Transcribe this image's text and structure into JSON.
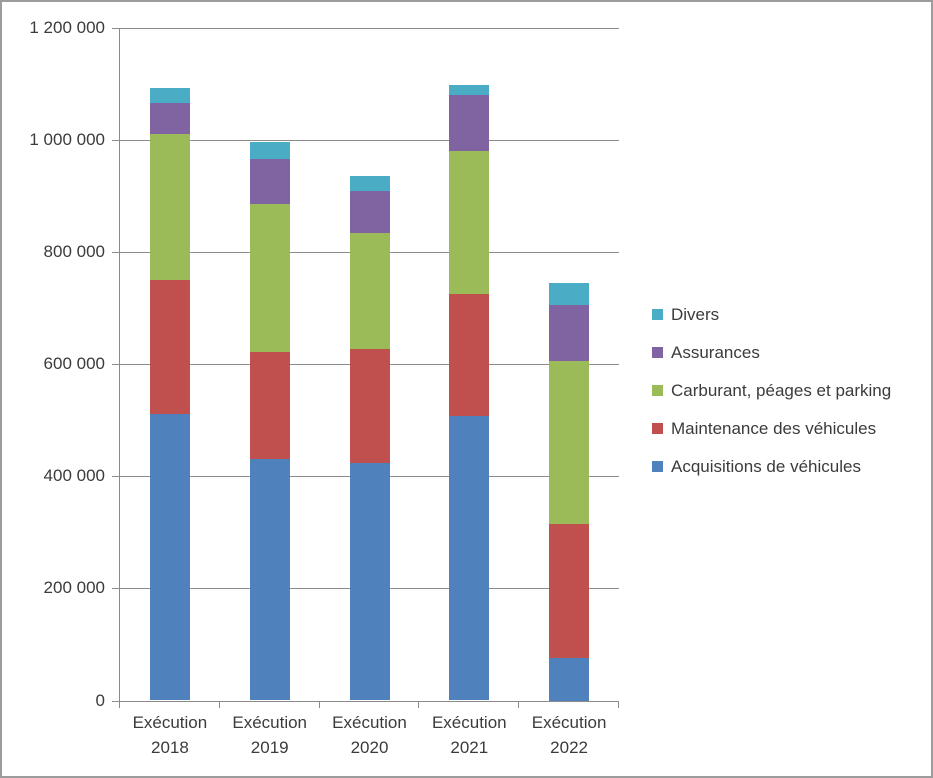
{
  "colors": {
    "background": "#FFFFFF",
    "frame_border": "#9C9C9C",
    "gridline": "#8A8A8A",
    "axis": "#8A8A8A",
    "text": "#3B3B3B"
  },
  "chart_data": {
    "type": "bar",
    "stacked": true,
    "title": "",
    "xlabel": "",
    "ylabel": "",
    "grid": true,
    "categories": [
      {
        "line1": "Exécution",
        "line2": "2018"
      },
      {
        "line1": "Exécution",
        "line2": "2019"
      },
      {
        "line1": "Exécution",
        "line2": "2020"
      },
      {
        "line1": "Exécution",
        "line2": "2021"
      },
      {
        "line1": "Exécution",
        "line2": "2022"
      }
    ],
    "series": [
      {
        "name": "Acquisitions de véhicules",
        "color": "#4F81BD",
        "values": [
          510000,
          430000,
          423000,
          507000,
          75000
        ]
      },
      {
        "name": "Maintenance des véhicules",
        "color": "#C0504D",
        "values": [
          240000,
          192000,
          204000,
          218000,
          240000
        ]
      },
      {
        "name": "Carburant, péages et parking",
        "color": "#9BBB59",
        "values": [
          260000,
          263000,
          206000,
          255000,
          290000
        ]
      },
      {
        "name": "Assurances",
        "color": "#8064A2",
        "values": [
          55000,
          80000,
          75000,
          100000,
          100000
        ]
      },
      {
        "name": "Divers",
        "color": "#4BACC6",
        "values": [
          28000,
          31000,
          27000,
          18000,
          40000
        ]
      }
    ],
    "y_axis": {
      "min": 0,
      "max": 1200000,
      "step": 200000,
      "tick_labels": [
        "0",
        "200 000",
        "400 000",
        "600 000",
        "800 000",
        "1 000 000",
        "1 200 000"
      ]
    },
    "legend": {
      "position": "right",
      "items": [
        "Divers",
        "Assurances",
        "Carburant, péages et parking",
        "Maintenance des véhicules",
        "Acquisitions de véhicules"
      ]
    }
  }
}
